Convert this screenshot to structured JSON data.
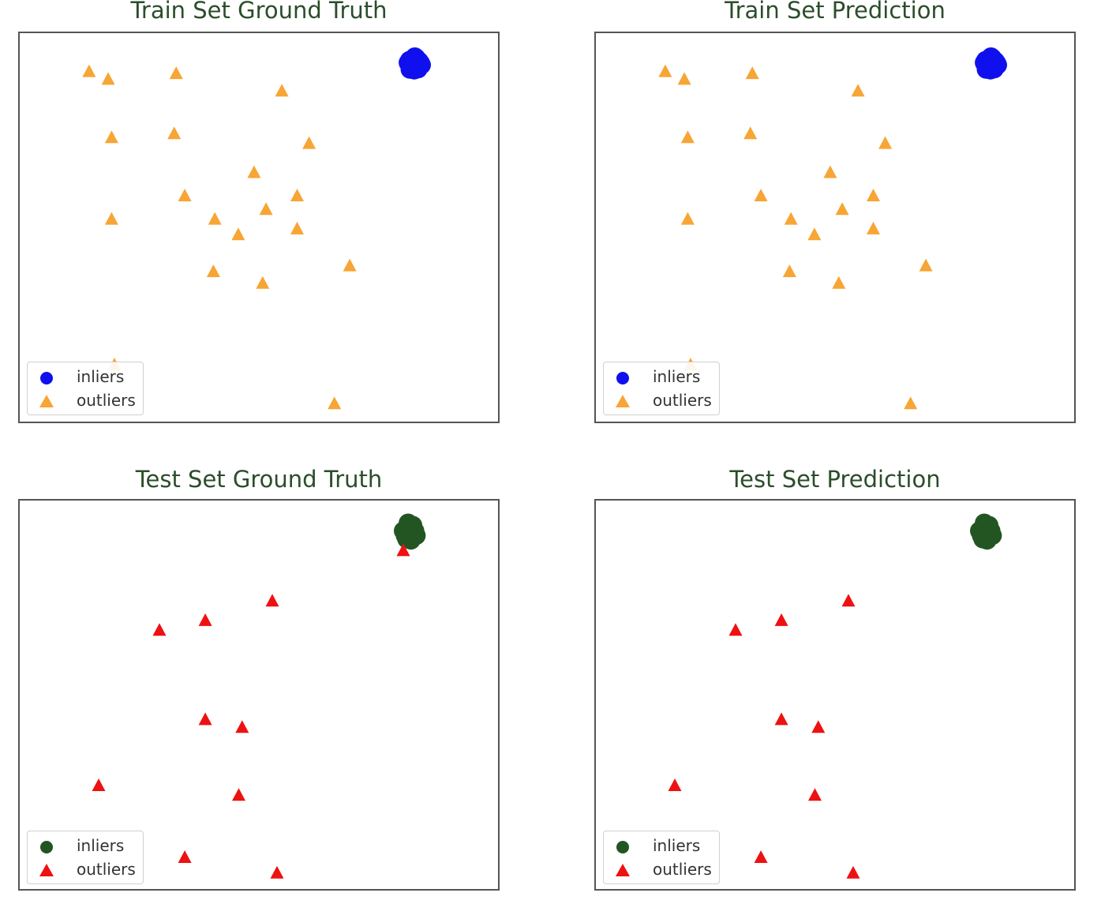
{
  "figure": {
    "colors": {
      "frame": "#555555",
      "title": "#2b4d2b",
      "train_inlier": "#1010ee",
      "train_outlier": "#f7a534",
      "test_inlier": "#225522",
      "test_outlier": "#ee1111"
    }
  },
  "chart_data": [
    {
      "type": "scatter",
      "title": "Train Set Ground Truth",
      "xlabel": "",
      "ylabel": "",
      "xlim": [
        0,
        100
      ],
      "ylim": [
        0,
        100
      ],
      "grid": false,
      "legend": {
        "position": "lower-left",
        "entries": [
          "inliers",
          "outliers"
        ]
      },
      "series": [
        {
          "name": "inliers",
          "marker": "circle",
          "color": "#1010ee",
          "cluster": true,
          "points": [
            [
              82.3,
              92
            ],
            [
              81.5,
              93
            ],
            [
              83.1,
              91.5
            ],
            [
              82.5,
              90.5
            ],
            [
              81.8,
              91.2
            ],
            [
              83.5,
              92.8
            ],
            [
              82.9,
              93.6
            ],
            [
              81.2,
              92.4
            ],
            [
              84,
              91.8
            ],
            [
              82,
              91
            ],
            [
              83.3,
              90.8
            ],
            [
              82.6,
              93.9
            ],
            [
              81.6,
              90.7
            ],
            [
              83.8,
              92.3
            ],
            [
              82.2,
              92.7
            ]
          ]
        },
        {
          "name": "outliers",
          "marker": "triangle",
          "color": "#f7a534",
          "points": [
            [
              14.5,
              90
            ],
            [
              18.5,
              88
            ],
            [
              32.7,
              89.5
            ],
            [
              54.8,
              85
            ],
            [
              19.2,
              73
            ],
            [
              32.3,
              74
            ],
            [
              60.5,
              71.5
            ],
            [
              49,
              64
            ],
            [
              34.5,
              58
            ],
            [
              58,
              58
            ],
            [
              19.2,
              52
            ],
            [
              40.8,
              52
            ],
            [
              51.5,
              54.5
            ],
            [
              58,
              49.5
            ],
            [
              45.7,
              48
            ],
            [
              40.5,
              38.5
            ],
            [
              50.8,
              35.5
            ],
            [
              69,
              40
            ],
            [
              19.8,
              14.5
            ],
            [
              65.8,
              4.5
            ]
          ]
        }
      ]
    },
    {
      "type": "scatter",
      "title": "Train Set Prediction",
      "xlabel": "",
      "ylabel": "",
      "xlim": [
        0,
        100
      ],
      "ylim": [
        0,
        100
      ],
      "grid": false,
      "legend": {
        "position": "lower-left",
        "entries": [
          "inliers",
          "outliers"
        ]
      },
      "series": [
        {
          "name": "inliers",
          "marker": "circle",
          "color": "#1010ee",
          "cluster": true,
          "points": [
            [
              82.3,
              92
            ],
            [
              81.5,
              93
            ],
            [
              83.1,
              91.5
            ],
            [
              82.5,
              90.5
            ],
            [
              81.8,
              91.2
            ],
            [
              83.5,
              92.8
            ],
            [
              82.9,
              93.6
            ],
            [
              81.2,
              92.4
            ],
            [
              84,
              91.8
            ],
            [
              82,
              91
            ],
            [
              83.3,
              90.8
            ],
            [
              82.6,
              93.9
            ],
            [
              81.6,
              90.7
            ],
            [
              83.8,
              92.3
            ],
            [
              82.2,
              92.7
            ]
          ]
        },
        {
          "name": "outliers",
          "marker": "triangle",
          "color": "#f7a534",
          "points": [
            [
              14.5,
              90
            ],
            [
              18.5,
              88
            ],
            [
              32.7,
              89.5
            ],
            [
              54.8,
              85
            ],
            [
              19.2,
              73
            ],
            [
              32.3,
              74
            ],
            [
              60.5,
              71.5
            ],
            [
              49,
              64
            ],
            [
              34.5,
              58
            ],
            [
              58,
              58
            ],
            [
              19.2,
              52
            ],
            [
              40.8,
              52
            ],
            [
              51.5,
              54.5
            ],
            [
              58,
              49.5
            ],
            [
              45.7,
              48
            ],
            [
              40.5,
              38.5
            ],
            [
              50.8,
              35.5
            ],
            [
              69,
              40
            ],
            [
              19.8,
              14.5
            ],
            [
              65.8,
              4.5
            ]
          ]
        }
      ]
    },
    {
      "type": "scatter",
      "title": "Test Set Ground Truth",
      "xlabel": "",
      "ylabel": "",
      "xlim": [
        0,
        100
      ],
      "ylim": [
        0,
        100
      ],
      "grid": false,
      "legend": {
        "position": "lower-left",
        "entries": [
          "inliers",
          "outliers"
        ]
      },
      "series": [
        {
          "name": "inliers",
          "marker": "circle",
          "color": "#225522",
          "cluster": true,
          "points": [
            [
              81.5,
              91.5
            ],
            [
              80.8,
              92.8
            ],
            [
              82.2,
              93.6
            ],
            [
              81.9,
              90.4
            ],
            [
              80.6,
              91
            ],
            [
              82.6,
              92.2
            ],
            [
              81.2,
              94.2
            ],
            [
              81.8,
              89.8
            ],
            [
              80.2,
              92.2
            ],
            [
              82.9,
              91
            ],
            [
              81.4,
              93.1
            ],
            [
              80.9,
              90.1
            ]
          ]
        },
        {
          "name": "outliers",
          "marker": "triangle",
          "color": "#ee1111",
          "points": [
            [
              80.2,
              87
            ],
            [
              52.8,
              74
            ],
            [
              38.8,
              69
            ],
            [
              29.2,
              66.5
            ],
            [
              38.8,
              43.5
            ],
            [
              46.5,
              41.5
            ],
            [
              16.5,
              26.5
            ],
            [
              45.8,
              24
            ],
            [
              34.5,
              8
            ],
            [
              53.8,
              4
            ]
          ]
        }
      ]
    },
    {
      "type": "scatter",
      "title": "Test Set Prediction",
      "xlabel": "",
      "ylabel": "",
      "xlim": [
        0,
        100
      ],
      "ylim": [
        0,
        100
      ],
      "grid": false,
      "legend": {
        "position": "lower-left",
        "entries": [
          "inliers",
          "outliers"
        ]
      },
      "series": [
        {
          "name": "inliers",
          "marker": "circle",
          "color": "#225522",
          "cluster": true,
          "points": [
            [
              81.5,
              91.5
            ],
            [
              80.8,
              92.8
            ],
            [
              82.2,
              93.6
            ],
            [
              81.9,
              90.4
            ],
            [
              80.6,
              91
            ],
            [
              82.6,
              92.2
            ],
            [
              81.2,
              94.2
            ],
            [
              81.8,
              89.8
            ],
            [
              80.2,
              92.2
            ],
            [
              82.9,
              91
            ],
            [
              81.4,
              93.1
            ],
            [
              80.9,
              90.1
            ]
          ]
        },
        {
          "name": "outliers",
          "marker": "triangle",
          "color": "#ee1111",
          "points": [
            [
              52.8,
              74
            ],
            [
              38.8,
              69
            ],
            [
              29.2,
              66.5
            ],
            [
              38.8,
              43.5
            ],
            [
              46.5,
              41.5
            ],
            [
              16.5,
              26.5
            ],
            [
              45.8,
              24
            ],
            [
              34.5,
              8
            ],
            [
              53.8,
              4
            ]
          ]
        }
      ]
    }
  ]
}
